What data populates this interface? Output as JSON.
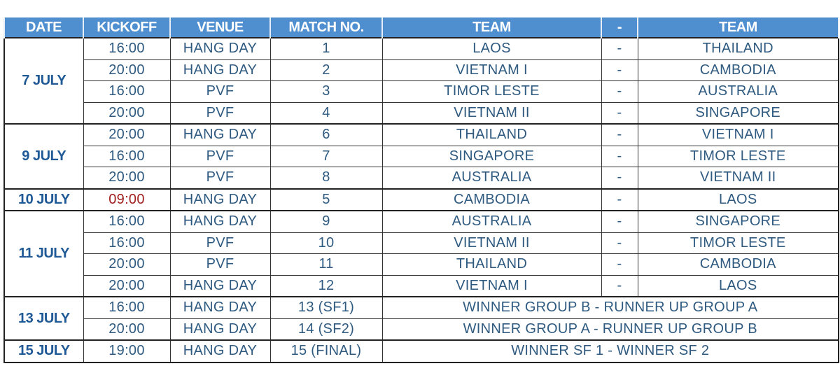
{
  "headers": [
    "DATE",
    "KICKOFF",
    "VENUE",
    "MATCH NO.",
    "TEAM",
    "-",
    "TEAM"
  ],
  "accent_color": "#4f8fd0",
  "days": [
    {
      "date": "7 JULY",
      "matches": [
        {
          "kickoff": "16:00",
          "venue": "HANG DAY",
          "match_no": "1",
          "team1": "LAOS",
          "sep": "-",
          "team2": "THAILAND"
        },
        {
          "kickoff": "20:00",
          "venue": "HANG DAY",
          "match_no": "2",
          "team1": "VIETNAM I",
          "sep": "-",
          "team2": "CAMBODIA"
        },
        {
          "kickoff": "16:00",
          "venue": "PVF",
          "match_no": "3",
          "team1": "TIMOR LESTE",
          "sep": "-",
          "team2": "AUSTRALIA"
        },
        {
          "kickoff": "20:00",
          "venue": "PVF",
          "match_no": "4",
          "team1": "VIETNAM II",
          "sep": "-",
          "team2": "SINGAPORE"
        }
      ]
    },
    {
      "date": "9 JULY",
      "matches": [
        {
          "kickoff": "20:00",
          "venue": "HANG DAY",
          "match_no": "6",
          "team1": "THAILAND",
          "sep": "-",
          "team2": "VIETNAM I"
        },
        {
          "kickoff": "16:00",
          "venue": "PVF",
          "match_no": "7",
          "team1": "SINGAPORE",
          "sep": "-",
          "team2": "TIMOR LESTE"
        },
        {
          "kickoff": "20:00",
          "venue": "PVF",
          "match_no": "8",
          "team1": "AUSTRALIA",
          "sep": "-",
          "team2": "VIETNAM II"
        }
      ]
    },
    {
      "date": "10 JULY",
      "matches": [
        {
          "kickoff": "09:00",
          "kickoff_highlight": true,
          "venue": "HANG DAY",
          "match_no": "5",
          "team1": "CAMBODIA",
          "sep": "-",
          "team2": "LAOS"
        }
      ]
    },
    {
      "date": "11 JULY",
      "matches": [
        {
          "kickoff": "16:00",
          "venue": "HANG DAY",
          "match_no": "9",
          "team1": "AUSTRALIA",
          "sep": "-",
          "team2": "SINGAPORE"
        },
        {
          "kickoff": "16:00",
          "venue": "PVF",
          "match_no": "10",
          "team1": "VIETNAM II",
          "sep": "-",
          "team2": "TIMOR LESTE"
        },
        {
          "kickoff": "20:00",
          "venue": "PVF",
          "match_no": "11",
          "team1": "THAILAND",
          "sep": "-",
          "team2": "CAMBODIA"
        },
        {
          "kickoff": "20:00",
          "venue": "HANG DAY",
          "match_no": "12",
          "team1": "VIETNAM I",
          "sep": "-",
          "team2": "LAOS"
        }
      ]
    },
    {
      "date": "13 JULY",
      "matches": [
        {
          "kickoff": "16:00",
          "venue": "HANG DAY",
          "match_no": "13 (SF1)",
          "fixture": "WINNER GROUP B - RUNNER UP GROUP A"
        },
        {
          "kickoff": "20:00",
          "venue": "HANG DAY",
          "match_no": "14 (SF2)",
          "fixture": "WINNER GROUP A - RUNNER UP GROUP B"
        }
      ]
    },
    {
      "date": "15 JULY",
      "matches": [
        {
          "kickoff": "19:00",
          "venue": "HANG DAY",
          "match_no": "15 (FINAL)",
          "fixture": "WINNER SF 1 - WINNER SF 2"
        }
      ]
    }
  ]
}
